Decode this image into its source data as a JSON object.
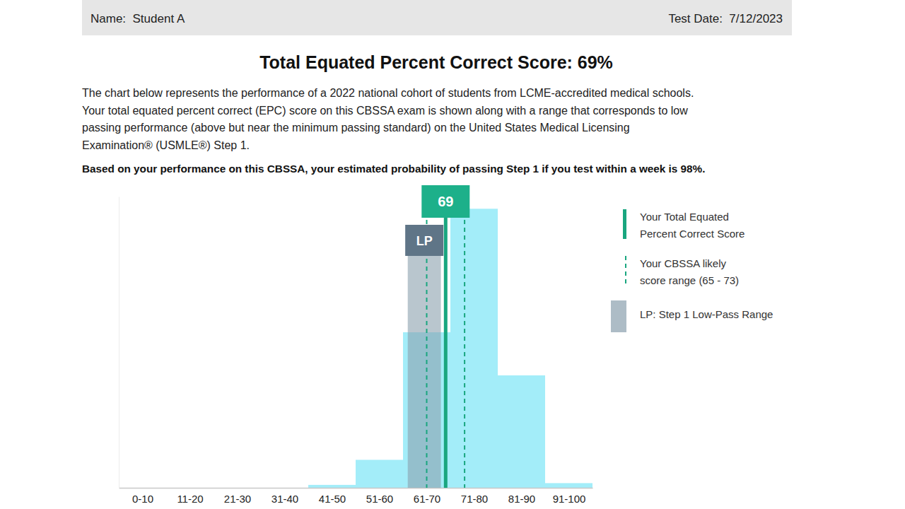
{
  "header": {
    "name": "Name:  Student A",
    "date": "Test Date:  7/12/2023"
  },
  "title": "Total Equated Percent Correct Score: 69%",
  "paragraph": {
    "lines": [
      "The chart below represents the performance of a 2022 national cohort of students from LCME-accredited medical schools.",
      "Your total equated percent correct (EPC) score on this CBSSA exam is shown along with a range that corresponds to low",
      "passing performance (above but near the minimum passing standard) on the United States Medical Licensing",
      "Examination® (USMLE®) Step 1."
    ]
  },
  "probability_statement": "Based on your performance on this CBSSA, your estimated probability of passing Step 1 if you test within a week is 98%.",
  "chart_data": {
    "type": "histogram",
    "bins": [
      0,
      10,
      20,
      30,
      40,
      50,
      60,
      70,
      80,
      90,
      100
    ],
    "values": [
      0,
      0,
      0,
      0,
      0.5,
      4.8,
      26.7,
      47.9,
      19.3,
      0.8
    ],
    "color": "#a3edf9",
    "xlim": [
      0,
      100
    ],
    "xticks": [
      {
        "value": 5,
        "label": "0-10"
      },
      {
        "value": 15,
        "label": "11-20"
      },
      {
        "value": 25,
        "label": "21-30"
      },
      {
        "value": 35,
        "label": "31-40"
      },
      {
        "value": 45,
        "label": "41-50"
      },
      {
        "value": 55,
        "label": "51-60"
      },
      {
        "value": 65,
        "label": "61-70"
      },
      {
        "value": 75,
        "label": "71-80"
      },
      {
        "value": 85,
        "label": "81-90"
      },
      {
        "value": 95,
        "label": "91-100"
      }
    ],
    "ylim": [
      0,
      50
    ],
    "yticks": [],
    "tick_labels": "x",
    "score": {
      "value": 69,
      "color": "#19a67f",
      "legend_lines": [
        "Your Total Equated",
        "Percent Correct Score"
      ]
    },
    "likely_range": {
      "values": [
        65,
        73
      ],
      "color": "#19a67f",
      "legend_lines": [
        "Your CBSSA likely",
        "score range (65 - 73)"
      ]
    },
    "low_pass_range": {
      "values": [
        61,
        68
      ],
      "label": "LP",
      "color": "#8aa0ae",
      "legend_lines": [
        "LP: Step 1 Low-Pass Range"
      ]
    }
  }
}
